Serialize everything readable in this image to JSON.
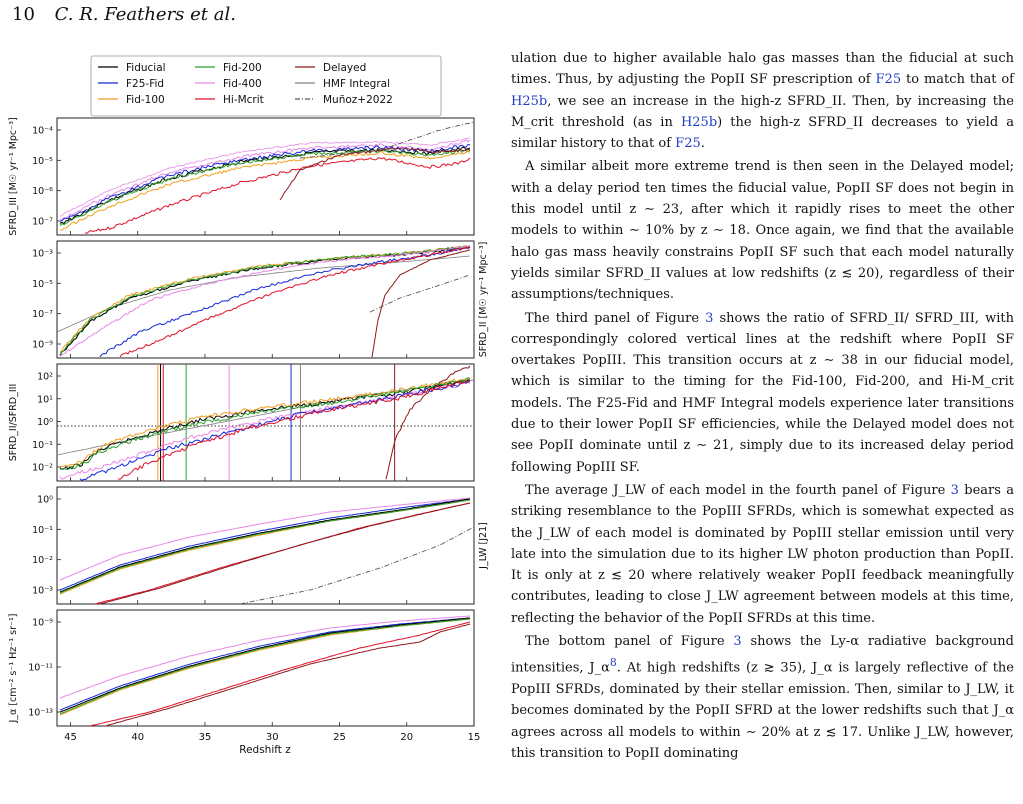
{
  "header": {
    "page": "10",
    "authors": "C. R. Feathers et al."
  },
  "legend": {
    "col1": [
      "Fiducial",
      "F25-Fid",
      "Fid-100"
    ],
    "col2": [
      "Fid-200",
      "Fid-400",
      "Hi-Mcrit"
    ],
    "col3": [
      "Delayed",
      "HMF Integral",
      "Muñoz+2022"
    ],
    "colors": {
      "Fiducial": "#000000",
      "F25-Fid": "#1428d8",
      "Fid-100": "#f0a020",
      "Fid-200": "#2ca02c",
      "Fid-400": "#e888e8",
      "Hi-Mcrit": "#e0102a",
      "Delayed": "#8b1a1a",
      "HMF Integral": "#808080",
      "Muñoz+2022": "#555555"
    }
  },
  "chart_data": {
    "type": "line",
    "xlabel": "Redshift z",
    "xlim": [
      46,
      15
    ],
    "xticks": [
      45,
      40,
      35,
      30,
      25,
      20,
      15
    ],
    "panels": [
      {
        "ylabel": "SFRD_III [M☉ yr⁻¹ Mpc⁻³]",
        "label_side": "left",
        "yticks": [
          "10⁻⁷",
          "10⁻⁶",
          "10⁻⁵",
          "10⁻⁴"
        ]
      },
      {
        "ylabel": "SFRD_II [M☉ yr⁻¹ Mpc⁻³]",
        "label_side": "right",
        "yticks": [
          "10⁻⁹",
          "10⁻⁷",
          "10⁻⁵",
          "10⁻³"
        ]
      },
      {
        "ylabel": "SFRD_II/SFRD_III",
        "label_side": "left",
        "yticks": [
          "10⁻²",
          "10⁻¹",
          "10⁰",
          "10¹",
          "10²"
        ],
        "transition_z": {
          "Fiducial": 38.3,
          "Fid-100": 38.5,
          "Fid-200": 36.4,
          "Hi-Mcrit": 38.1,
          "Fid-400": 33.2,
          "F25-Fid": 28.6,
          "HMF Integral": 27.9,
          "Delayed": 20.9
        }
      },
      {
        "ylabel": "J_LW [J21]",
        "label_side": "right",
        "yticks": [
          "10⁻³",
          "10⁻²",
          "10⁻¹",
          "10⁰"
        ]
      },
      {
        "ylabel": "J_α [cm⁻² s⁻¹ Hz⁻¹ sr⁻¹]",
        "label_side": "left",
        "yticks": [
          "10⁻¹³",
          "10⁻¹¹",
          "10⁻⁹"
        ]
      }
    ]
  },
  "text": {
    "p1": [
      {
        "t": "ulation due to higher available halo gas masses than the fiducial at such times. Thus, by adjusting the PopII SF prescription of "
      },
      {
        "t": "F25",
        "ref": true
      },
      {
        "t": " to match that of "
      },
      {
        "t": "H25b",
        "ref": true
      },
      {
        "t": ", we see an increase in the high-z SFRD_II. Then, by increasing the M_crit threshold (as in "
      },
      {
        "t": "H25b",
        "ref": true
      },
      {
        "t": ") the high-z SFRD_II decreases to yield a similar history to that of "
      },
      {
        "t": "F25",
        "ref": true
      },
      {
        "t": "."
      }
    ],
    "p2": "A similar albeit more extreme trend is then seen in the Delayed model; with a delay period ten times the fiducial value, PopII SF does not begin in this model until z ∼ 23, after which it rapidly rises to meet the other models to within ∼ 10% by z ∼ 18. Once again, we find that the available halo gas mass heavily constrains PopII SF such that each model naturally yields similar SFRD_II values at low redshifts (z ≲ 20), regardless of their assumptions/techniques.",
    "p3": [
      {
        "t": "The third panel of Figure "
      },
      {
        "t": "3",
        "ref": true
      },
      {
        "t": " shows the ratio of SFRD_II/ SFRD_III, with correspondingly colored vertical lines at the redshift where PopII SF overtakes PopIII. This transition occurs at z ∼ 38 in our fiducial model, which is similar to the timing for the Fid-100, Fid-200, and Hi-M_crit models. The F25-Fid and HMF Integral models experience later transitions due to their lower PopII SF efficiencies, while the Delayed model does not see PopII dominate until z ∼ 21, simply due to its increased delay period following PopIII SF."
      }
    ],
    "p4": [
      {
        "t": "The average J_LW of each model in the fourth panel of Figure "
      },
      {
        "t": "3",
        "ref": true
      },
      {
        "t": " bears a striking resemblance to the PopIII SFRDs, which is somewhat expected as the J_LW of each model is dominated by PopIII stellar emission until very late into the simulation due to its higher LW photon production than PopII. It is only at z ≲ 20 where relatively weaker PopII feedback meaningfully contributes, leading to close J_LW agreement between models at this time, reflecting the behavior of the PopII SFRDs at this time."
      }
    ],
    "p5": [
      {
        "t": "The bottom panel of Figure "
      },
      {
        "t": "3",
        "ref": true
      },
      {
        "t": " shows the Ly-α radiative background intensities, J_α"
      },
      {
        "t": "8",
        "ref": true,
        "sup": true
      },
      {
        "t": ". At high redshifts (z ≳ 35), J_α is largely reflective of the PopIII SFRDs, dominated by their stellar emission. Then, similar to J_LW, it becomes dominated by the PopII SFRD at the lower redshifts such that J_α agrees across all models to within ∼ 20% at z ≲ 17. Unlike J_LW, however, this transition to PopII dominating"
      }
    ]
  }
}
